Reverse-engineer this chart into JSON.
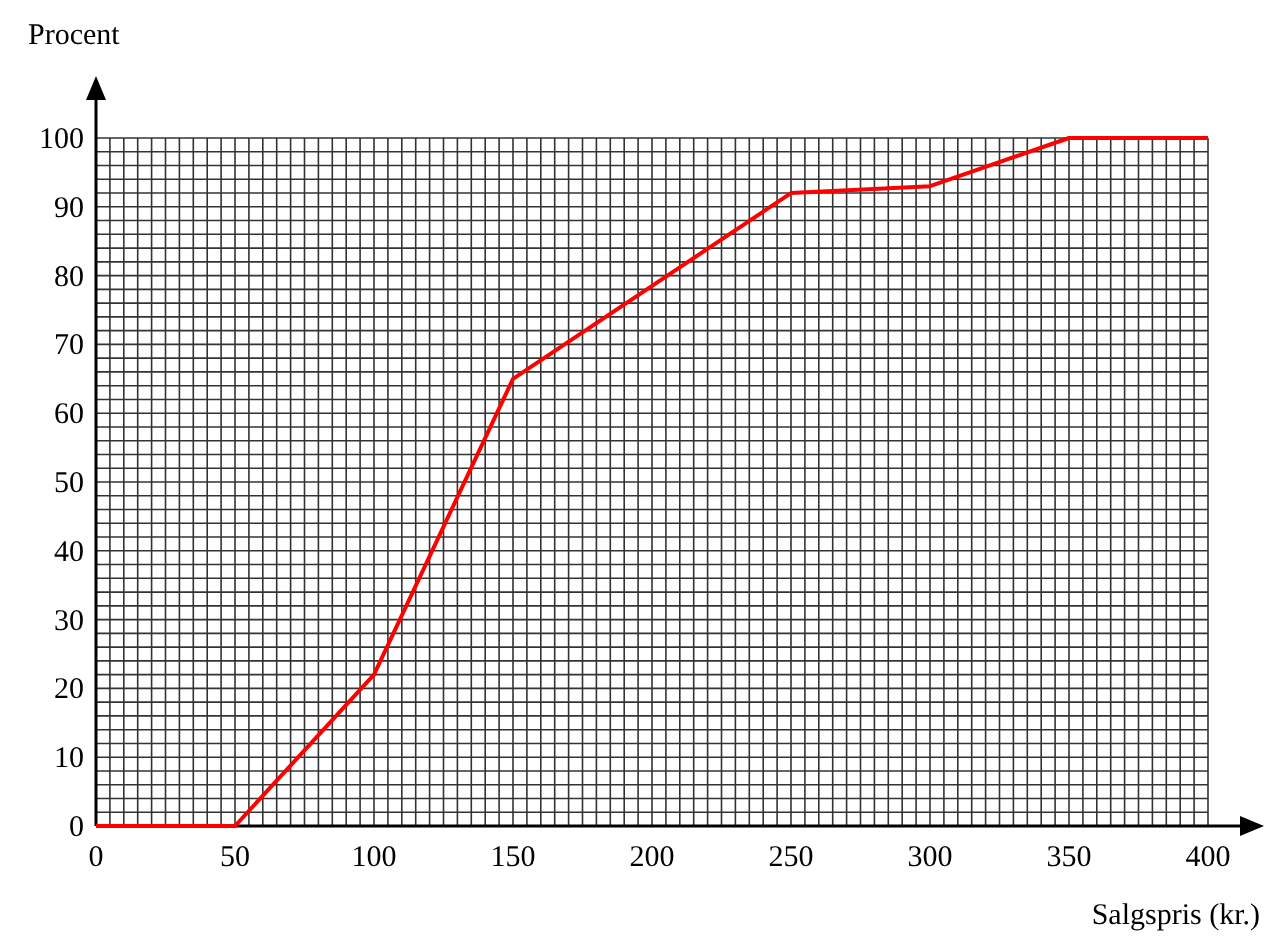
{
  "chart_data": {
    "type": "line",
    "xlabel": "Salgspris (kr.)",
    "ylabel": "Procent",
    "x": [
      0,
      50,
      100,
      150,
      250,
      300,
      350,
      400
    ],
    "series": [
      {
        "color": "#ff0000",
        "values": [
          0,
          0,
          22,
          65,
          92,
          93,
          100,
          100
        ]
      }
    ],
    "xlim": [
      0,
      400
    ],
    "ylim": [
      0,
      100
    ],
    "xticks": [
      0,
      50,
      100,
      150,
      200,
      250,
      300,
      350,
      400
    ],
    "yticks": [
      0,
      10,
      20,
      30,
      40,
      50,
      60,
      70,
      80,
      90,
      100
    ],
    "grid": true,
    "marker": "none",
    "line_style": "solid"
  }
}
